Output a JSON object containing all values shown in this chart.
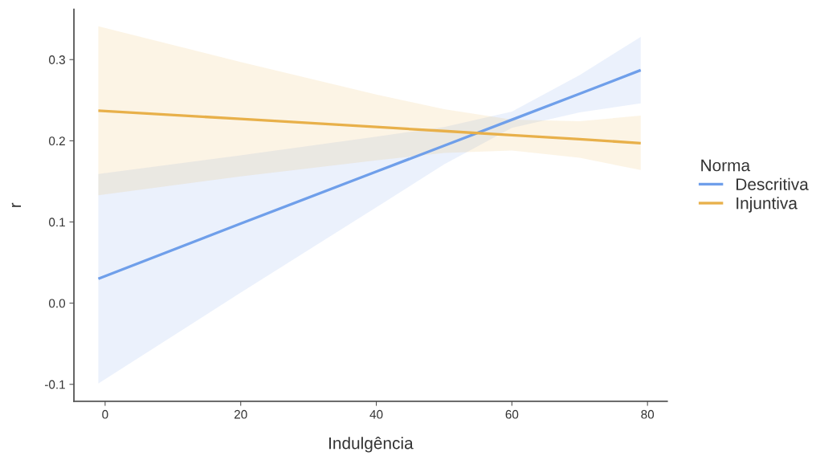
{
  "chart_data": {
    "type": "line",
    "xlabel": "Indulgência",
    "ylabel": "r",
    "legend_title": "Norma",
    "x": [
      -1,
      20,
      40,
      50,
      60,
      70,
      79
    ],
    "series": [
      {
        "name": "Descritiva",
        "color": "#6f9fea",
        "values": [
          0.03,
          0.098,
          0.162,
          0.194,
          0.226,
          0.258,
          0.287
        ],
        "lower": [
          -0.099,
          0.013,
          0.118,
          0.171,
          0.216,
          0.235,
          0.246
        ],
        "upper": [
          0.159,
          0.182,
          0.205,
          0.217,
          0.236,
          0.281,
          0.328
        ]
      },
      {
        "name": "Injuntiva",
        "color": "#e8b04a",
        "values": [
          0.237,
          0.227,
          0.217,
          0.212,
          0.207,
          0.202,
          0.197
        ],
        "lower": [
          0.133,
          0.156,
          0.176,
          0.185,
          0.188,
          0.179,
          0.164
        ],
        "upper": [
          0.341,
          0.297,
          0.257,
          0.239,
          0.226,
          0.224,
          0.231
        ]
      }
    ],
    "xlim": [
      -4.6,
      82.9
    ],
    "ylim": [
      -0.121,
      0.362
    ],
    "xticks": [
      0,
      20,
      40,
      60,
      80
    ],
    "yticks": [
      -0.1,
      {
        "value": 0.0,
        "label": "0.0"
      },
      0.1,
      0.2,
      0.3
    ],
    "grid": false,
    "legend": "right",
    "line_style": "solid",
    "marker": "none"
  }
}
